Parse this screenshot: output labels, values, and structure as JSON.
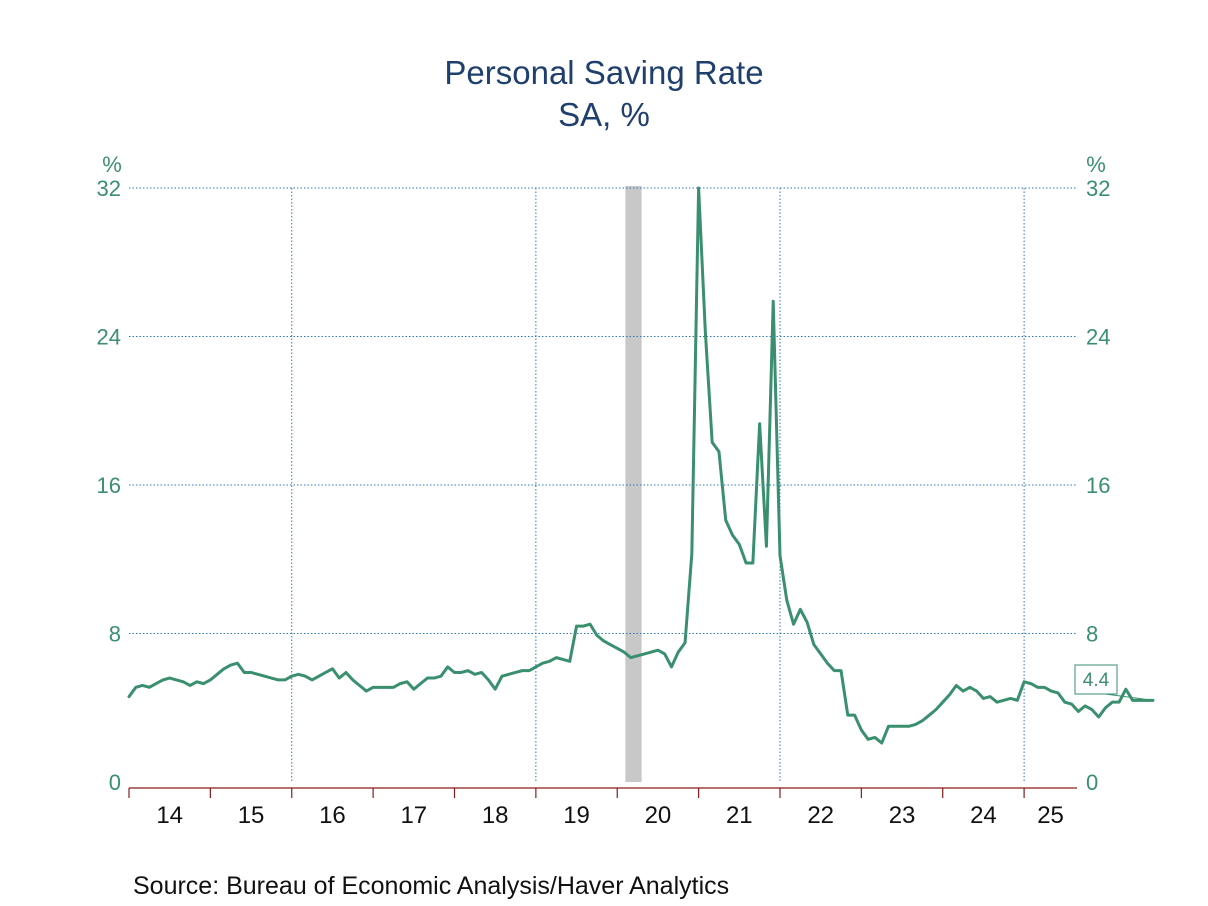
{
  "chart_data": {
    "type": "line",
    "title": "Personal Saving Rate",
    "subtitle": "SA, %",
    "y_unit_left": "%",
    "y_unit_right": "%",
    "ylim": [
      0,
      32
    ],
    "y_ticks": [
      0,
      8,
      16,
      24,
      32
    ],
    "x_range": [
      2014.0,
      2025.65
    ],
    "x_ticks": [
      {
        "label": "14",
        "year": 2014
      },
      {
        "label": "15",
        "year": 2015
      },
      {
        "label": "16",
        "year": 2016
      },
      {
        "label": "17",
        "year": 2017
      },
      {
        "label": "18",
        "year": 2018
      },
      {
        "label": "19",
        "year": 2019
      },
      {
        "label": "20",
        "year": 2020
      },
      {
        "label": "21",
        "year": 2021
      },
      {
        "label": "22",
        "year": 2022
      },
      {
        "label": "23",
        "year": 2023
      },
      {
        "label": "24",
        "year": 2024
      },
      {
        "label": "25",
        "year": 2025
      }
    ],
    "gridlines": true,
    "recession": {
      "start": 2020.1,
      "end": 2020.3
    },
    "last_value_label": "4.4",
    "series": [
      {
        "color": "#3a8f6e",
        "start": "2014-01",
        "frequency": "monthly",
        "values": [
          4.6,
          5.1,
          5.2,
          5.1,
          5.3,
          5.5,
          5.6,
          5.5,
          5.4,
          5.2,
          5.4,
          5.3,
          5.5,
          5.8,
          6.1,
          6.3,
          6.4,
          5.9,
          5.9,
          5.8,
          5.7,
          5.6,
          5.5,
          5.5,
          5.7,
          5.8,
          5.7,
          5.5,
          5.7,
          5.9,
          6.1,
          5.6,
          5.9,
          5.5,
          5.2,
          4.9,
          5.1,
          5.1,
          5.1,
          5.1,
          5.3,
          5.4,
          5.0,
          5.3,
          5.6,
          5.6,
          5.7,
          6.2,
          5.9,
          5.9,
          6.0,
          5.8,
          5.9,
          5.5,
          5.0,
          5.7,
          5.8,
          5.9,
          6.0,
          6.0,
          6.2,
          6.4,
          6.5,
          6.7,
          6.6,
          6.5,
          8.4,
          8.4,
          8.5,
          7.9,
          7.6,
          7.4,
          7.2,
          7.0,
          6.7,
          6.8,
          6.9,
          7.0,
          7.1,
          6.9,
          6.2,
          7.0,
          7.5,
          12.3,
          32.0,
          24.2,
          18.3,
          17.8,
          14.1,
          13.3,
          12.8,
          11.8,
          11.8,
          19.3,
          12.7,
          25.9,
          12.2,
          9.8,
          8.5,
          9.3,
          8.6,
          7.4,
          6.9,
          6.4,
          6.0,
          6.0,
          3.6,
          3.6,
          2.8,
          2.3,
          2.4,
          2.1,
          3.0,
          3.0,
          3.0,
          3.0,
          3.1,
          3.3,
          3.6,
          3.9,
          4.3,
          4.7,
          5.2,
          4.9,
          5.1,
          4.9,
          4.5,
          4.6,
          4.3,
          4.4,
          4.5,
          4.4,
          5.4,
          5.3,
          5.1,
          5.1,
          4.9,
          4.8,
          4.3,
          4.2,
          3.8,
          4.1,
          3.9,
          3.5,
          4.0,
          4.3,
          4.3,
          5.0,
          4.4,
          4.4,
          4.4,
          4.4
        ]
      }
    ]
  },
  "source": "Source:  Bureau of Economic Analysis/Haver Analytics"
}
